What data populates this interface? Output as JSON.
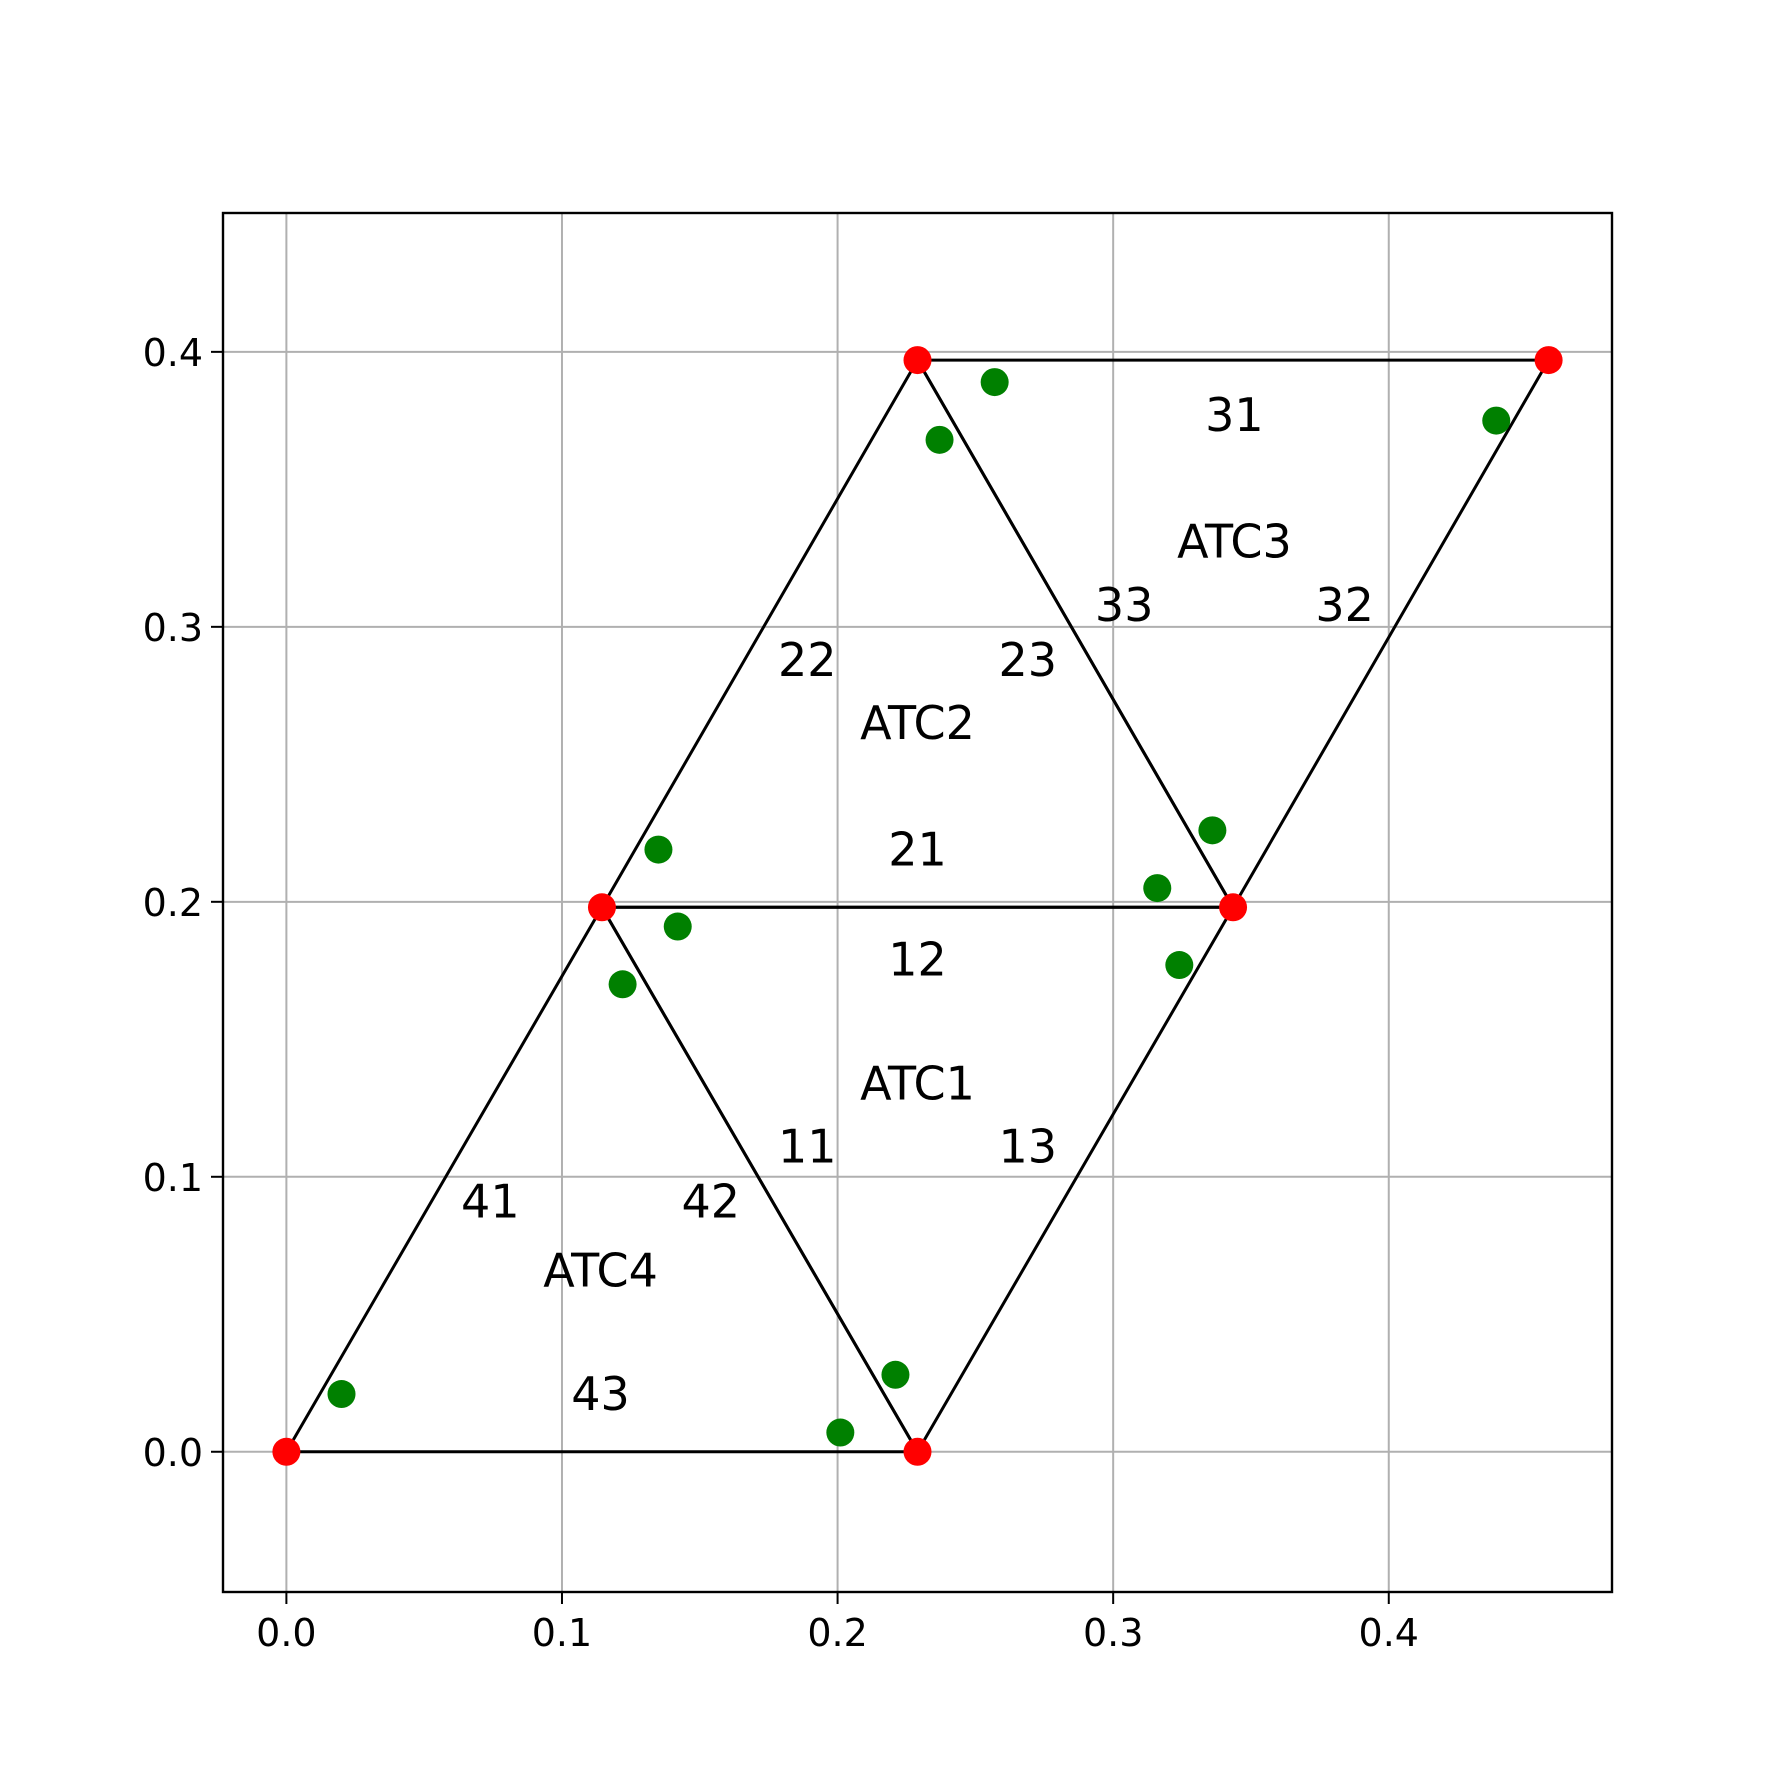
{
  "chart_data": {
    "type": "scatter",
    "title": "",
    "xlabel": "",
    "ylabel": "",
    "xlim": [
      -0.023,
      0.481
    ],
    "ylim": [
      -0.051,
      0.4505
    ],
    "grid": true,
    "x_ticks": [
      "0.0",
      "0.1",
      "0.2",
      "0.3",
      "0.4"
    ],
    "y_ticks": [
      "0.0",
      "0.1",
      "0.2",
      "0.3",
      "0.4"
    ],
    "colors": {
      "vertices": "#ff0000",
      "markers": "#008000",
      "edges": "#000000",
      "grid": "#b0b0b0"
    },
    "vertices": {
      "x": [
        0.0,
        0.229,
        0.1145,
        0.3435,
        0.229,
        0.458
      ],
      "y": [
        0.0,
        0.0,
        0.198,
        0.198,
        0.397,
        0.397
      ]
    },
    "markers": {
      "x": [
        0.02,
        0.201,
        0.221,
        0.122,
        0.142,
        0.135,
        0.316,
        0.336,
        0.324,
        0.237,
        0.257,
        0.439
      ],
      "y": [
        0.021,
        0.007,
        0.028,
        0.17,
        0.191,
        0.219,
        0.205,
        0.226,
        0.177,
        0.368,
        0.389,
        0.375
      ]
    },
    "triangles": [
      {
        "name": "ATC1",
        "vertices": [
          [
            0.1145,
            0.198
          ],
          [
            0.229,
            0.0
          ],
          [
            0.3435,
            0.198
          ]
        ]
      },
      {
        "name": "ATC2",
        "vertices": [
          [
            0.1145,
            0.198
          ],
          [
            0.229,
            0.397
          ],
          [
            0.3435,
            0.198
          ]
        ]
      },
      {
        "name": "ATC3",
        "vertices": [
          [
            0.229,
            0.397
          ],
          [
            0.458,
            0.397
          ],
          [
            0.3435,
            0.198
          ]
        ]
      },
      {
        "name": "ATC4",
        "vertices": [
          [
            0.0,
            0.0
          ],
          [
            0.229,
            0.0
          ],
          [
            0.1145,
            0.198
          ]
        ]
      }
    ],
    "annotations": [
      {
        "text": "ATC1",
        "x": 0.229,
        "y": 0.134
      },
      {
        "text": "ATC2",
        "x": 0.229,
        "y": 0.265
      },
      {
        "text": "ATC3",
        "x": 0.344,
        "y": 0.331
      },
      {
        "text": "ATC4",
        "x": 0.114,
        "y": 0.066
      },
      {
        "text": "11",
        "x": 0.189,
        "y": 0.111
      },
      {
        "text": "12",
        "x": 0.229,
        "y": 0.179
      },
      {
        "text": "13",
        "x": 0.269,
        "y": 0.111
      },
      {
        "text": "21",
        "x": 0.229,
        "y": 0.219
      },
      {
        "text": "22",
        "x": 0.189,
        "y": 0.288
      },
      {
        "text": "23",
        "x": 0.269,
        "y": 0.288
      },
      {
        "text": "31",
        "x": 0.344,
        "y": 0.377
      },
      {
        "text": "32",
        "x": 0.384,
        "y": 0.308
      },
      {
        "text": "33",
        "x": 0.304,
        "y": 0.308
      },
      {
        "text": "41",
        "x": 0.074,
        "y": 0.091
      },
      {
        "text": "42",
        "x": 0.154,
        "y": 0.091
      },
      {
        "text": "43",
        "x": 0.114,
        "y": 0.021
      }
    ]
  }
}
